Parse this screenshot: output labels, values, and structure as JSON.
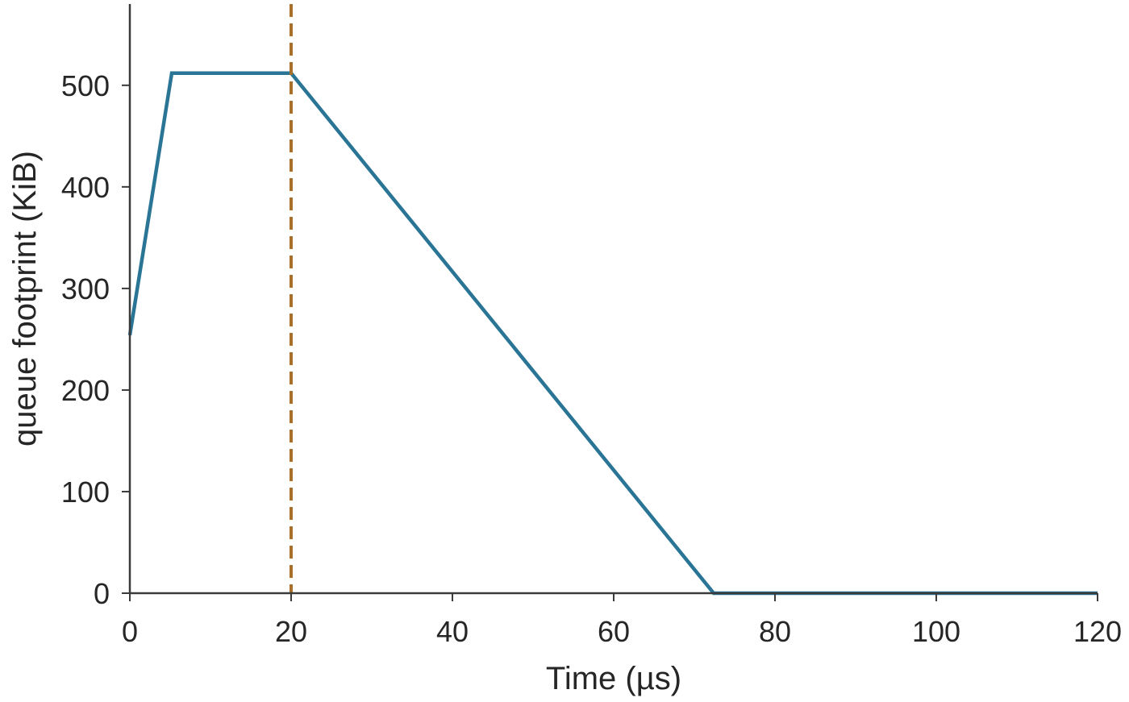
{
  "chart_data": {
    "type": "line",
    "title": "",
    "xlabel": "Time (µs)",
    "ylabel": "queue footprint (KiB)",
    "xlim": [
      0,
      120
    ],
    "ylim": [
      0,
      580
    ],
    "x_ticks": [
      0,
      20,
      40,
      60,
      80,
      100,
      120
    ],
    "y_ticks": [
      0,
      100,
      200,
      300,
      400,
      500
    ],
    "grid": false,
    "legend": "none",
    "series": [
      {
        "color": "#2a7596",
        "x": [
          0,
          5.2,
          20,
          72.4,
          120
        ],
        "y": [
          254,
          512,
          512,
          0,
          0
        ]
      }
    ],
    "annotations": [
      {
        "type": "vline",
        "x": 20,
        "style": "dashed",
        "color": "#a8702a"
      }
    ]
  }
}
